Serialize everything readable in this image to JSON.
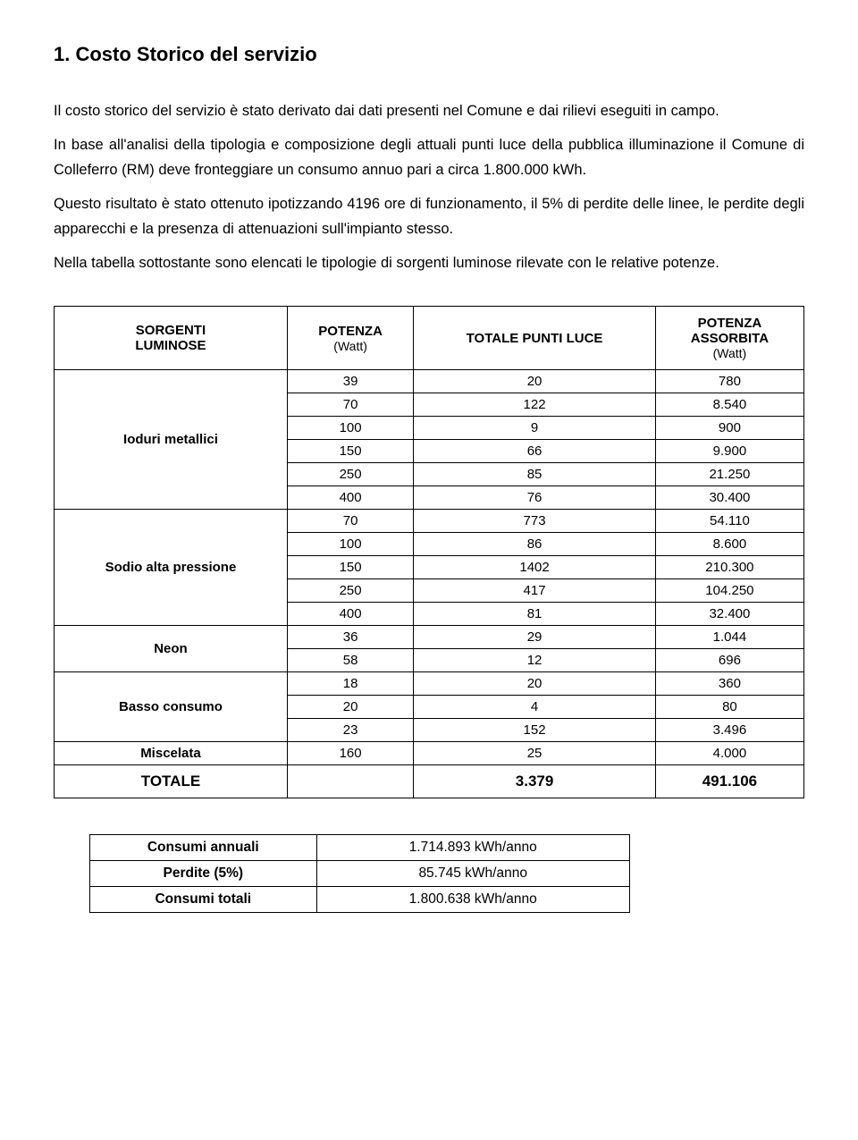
{
  "title": "1. Costo Storico del servizio",
  "paragraphs": {
    "p1": "Il costo storico del servizio è stato derivato dai dati presenti nel Comune e dai rilievi eseguiti in campo.",
    "p2": "In base all'analisi della tipologia e composizione degli attuali punti luce della pubblica illuminazione il Comune di Colleferro (RM) deve fronteggiare un consumo annuo pari a circa 1.800.000 kWh.",
    "p3": "Questo risultato è stato ottenuto ipotizzando 4196 ore di funzionamento, il 5% di perdite delle linee, le perdite degli apparecchi e la presenza di attenuazioni sull'impianto stesso.",
    "p4": "Nella tabella sottostante sono elencati le tipologie di sorgenti luminose rilevate con le relative potenze."
  },
  "mainTable": {
    "headers": {
      "col1_line1": "SORGENTI",
      "col1_line2": "LUMINOSE",
      "col2_line1": "POTENZA",
      "col2_sub": "(Watt)",
      "col3": "TOTALE PUNTI LUCE",
      "col4_line1": "POTENZA",
      "col4_line2": "ASSORBITA",
      "col4_sub": "(Watt)"
    },
    "groups": [
      {
        "label": "Ioduri metallici",
        "span": 6
      },
      {
        "label": "Sodio alta pressione",
        "span": 5
      },
      {
        "label": "Neon",
        "span": 2
      },
      {
        "label": "Basso consumo",
        "span": 3
      },
      {
        "label": "Miscelata",
        "span": 1
      }
    ],
    "rows": [
      {
        "potenza": "39",
        "punti": "20",
        "assorbita": "780"
      },
      {
        "potenza": "70",
        "punti": "122",
        "assorbita": "8.540"
      },
      {
        "potenza": "100",
        "punti": "9",
        "assorbita": "900"
      },
      {
        "potenza": "150",
        "punti": "66",
        "assorbita": "9.900"
      },
      {
        "potenza": "250",
        "punti": "85",
        "assorbita": "21.250"
      },
      {
        "potenza": "400",
        "punti": "76",
        "assorbita": "30.400"
      },
      {
        "potenza": "70",
        "punti": "773",
        "assorbita": "54.110"
      },
      {
        "potenza": "100",
        "punti": "86",
        "assorbita": "8.600"
      },
      {
        "potenza": "150",
        "punti": "1402",
        "assorbita": "210.300"
      },
      {
        "potenza": "250",
        "punti": "417",
        "assorbita": "104.250"
      },
      {
        "potenza": "400",
        "punti": "81",
        "assorbita": "32.400"
      },
      {
        "potenza": "36",
        "punti": "29",
        "assorbita": "1.044"
      },
      {
        "potenza": "58",
        "punti": "12",
        "assorbita": "696"
      },
      {
        "potenza": "18",
        "punti": "20",
        "assorbita": "360"
      },
      {
        "potenza": "20",
        "punti": "4",
        "assorbita": "80"
      },
      {
        "potenza": "23",
        "punti": "152",
        "assorbita": "3.496"
      },
      {
        "potenza": "160",
        "punti": "25",
        "assorbita": "4.000"
      }
    ],
    "total": {
      "label": "TOTALE",
      "punti": "3.379",
      "assorbita": "491.106"
    }
  },
  "summaryTable": {
    "rows": [
      {
        "label": "Consumi annuali",
        "value": "1.714.893 kWh/anno"
      },
      {
        "label": "Perdite (5%)",
        "value": "85.745 kWh/anno"
      },
      {
        "label": "Consumi totali",
        "value": "1.800.638 kWh/anno"
      }
    ]
  }
}
